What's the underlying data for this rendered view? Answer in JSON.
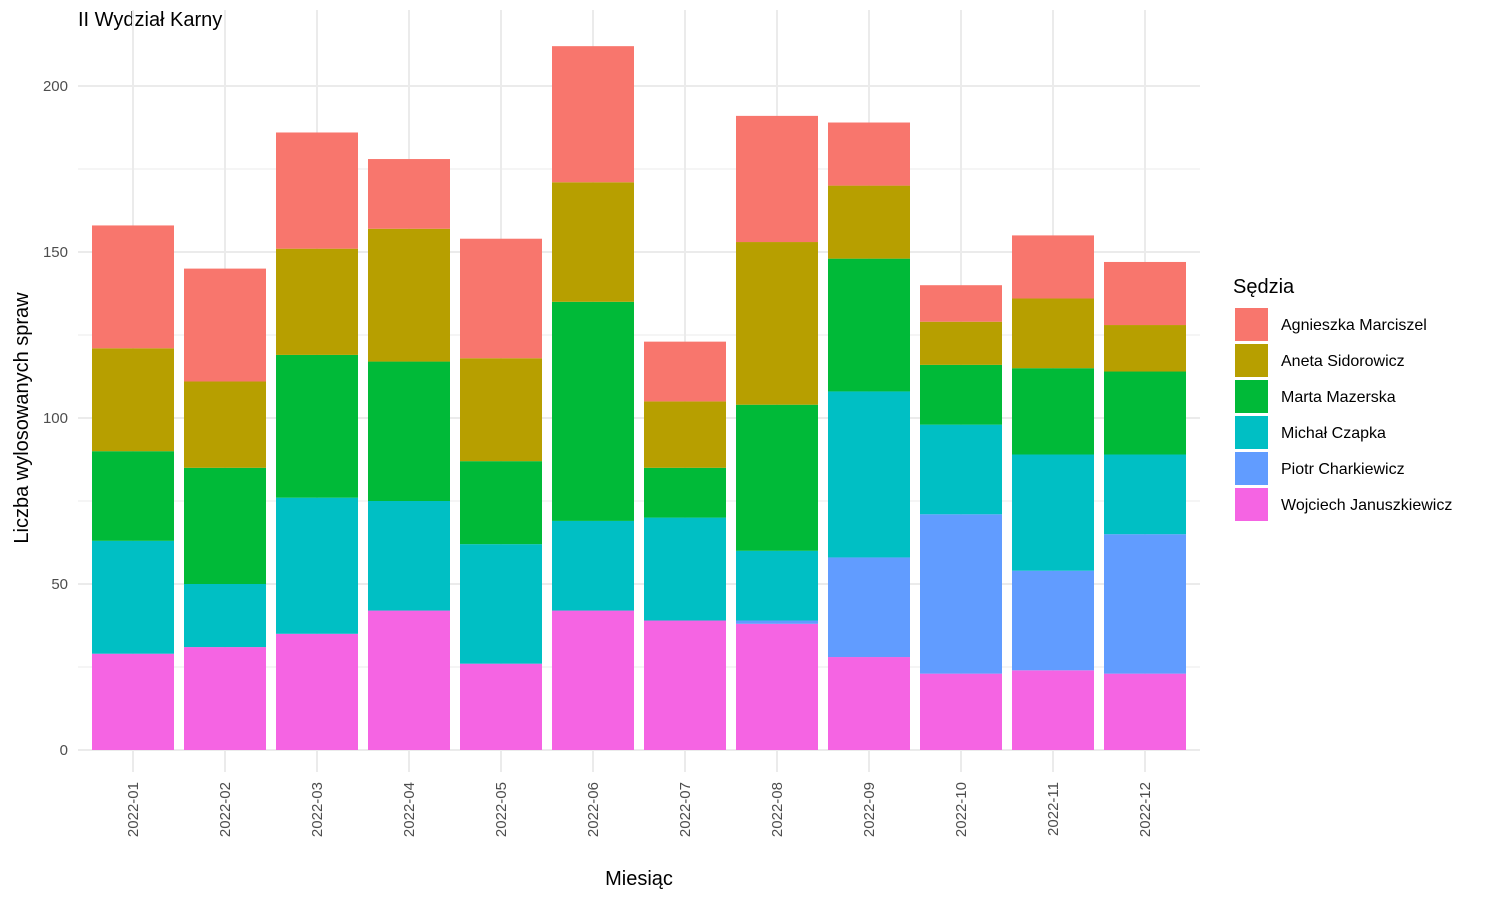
{
  "chart_data": {
    "type": "bar",
    "stacked": true,
    "title": "II Wydział Karny",
    "xlabel": "Miesiąc",
    "ylabel": "Liczba wylosowanych spraw",
    "ylim": [
      0,
      220
    ],
    "yticks": [
      0,
      50,
      100,
      150,
      200
    ],
    "legend_title": "Sędzia",
    "legend_position": "right",
    "grid": true,
    "categories": [
      "2022-01",
      "2022-02",
      "2022-03",
      "2022-04",
      "2022-05",
      "2022-06",
      "2022-07",
      "2022-08",
      "2022-09",
      "2022-10",
      "2022-11",
      "2022-12"
    ],
    "series": [
      {
        "name": "Agnieszka Marciszel",
        "color": "#F8766D",
        "values": [
          37,
          34,
          35,
          21,
          36,
          41,
          18,
          38,
          19,
          11,
          19,
          19
        ]
      },
      {
        "name": "Aneta Sidorowicz",
        "color": "#B79F00",
        "values": [
          31,
          26,
          32,
          40,
          31,
          36,
          20,
          49,
          22,
          13,
          21,
          14
        ]
      },
      {
        "name": "Marta Mazerska",
        "color": "#00BA38",
        "values": [
          27,
          35,
          43,
          42,
          25,
          66,
          15,
          44,
          40,
          18,
          26,
          25
        ]
      },
      {
        "name": "Michał Czapka",
        "color": "#00BFC4",
        "values": [
          34,
          19,
          41,
          33,
          36,
          27,
          31,
          21,
          50,
          27,
          35,
          24
        ]
      },
      {
        "name": "Piotr Charkiewicz",
        "color": "#619CFF",
        "values": [
          0,
          0,
          0,
          0,
          0,
          0,
          0,
          1,
          30,
          48,
          30,
          42
        ]
      },
      {
        "name": "Wojciech Januszkiewicz",
        "color": "#F564E3",
        "values": [
          29,
          31,
          35,
          42,
          26,
          42,
          39,
          38,
          28,
          23,
          24,
          23
        ]
      }
    ]
  }
}
